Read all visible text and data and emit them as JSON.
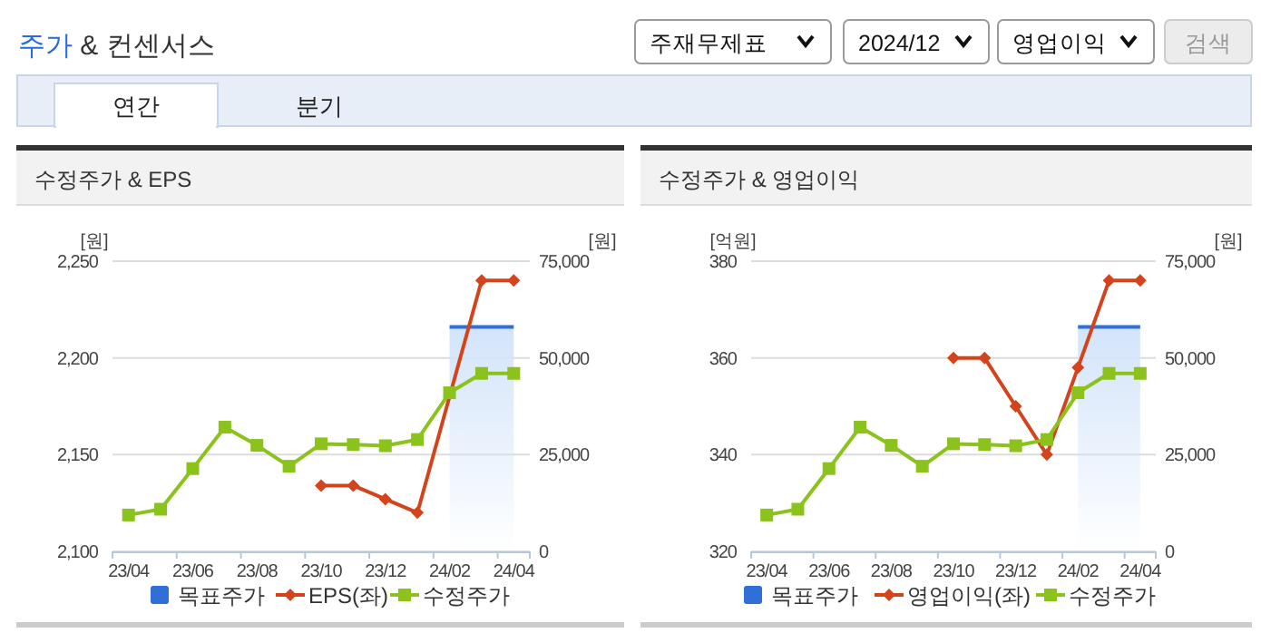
{
  "chart_data": [
    {
      "type": "other",
      "title": "주가 & 컨센서스",
      "annotations": [
        "주재무제표",
        "2024/12",
        "영업이익",
        "검색",
        "연간",
        "분기"
      ]
    },
    {
      "type": "line",
      "title": "수정주가 & EPS",
      "ylabel": "[원]",
      "y2label": "[원]",
      "categories": [
        "23/04",
        null,
        "23/06",
        null,
        "23/08",
        null,
        "23/10",
        null,
        "23/12",
        null,
        "24/02",
        null,
        "24/04"
      ],
      "ylim": [
        2100,
        2250
      ],
      "yticks": [
        {
          "value": 2100,
          "label": "2,100"
        },
        {
          "value": 2150,
          "label": "2,150"
        },
        {
          "value": 2200,
          "label": "2,200"
        },
        {
          "value": 2250,
          "label": "2,250"
        }
      ],
      "y2lim": [
        0,
        75000
      ],
      "y2ticks": [
        0,
        {
          "value": 25000,
          "label": "25,000"
        },
        {
          "value": 50000,
          "label": "50,000"
        },
        {
          "value": 75000,
          "label": "75,000"
        }
      ],
      "grid": "y",
      "legend": "bottom",
      "series": [
        {
          "name": "목표주가",
          "type": "area",
          "axis": "y2",
          "color": "#2f6fd6",
          "values": [
            null,
            null,
            null,
            null,
            null,
            null,
            null,
            null,
            null,
            null,
            58000,
            58000,
            58000
          ]
        },
        {
          "name": "EPS(좌)",
          "type": "line",
          "color": "#d4441c",
          "marker": "diamond",
          "values": [
            null,
            null,
            null,
            null,
            null,
            null,
            2134,
            2134,
            2127,
            2120,
            null,
            2240,
            2240
          ]
        },
        {
          "name": "수정주가",
          "type": "line",
          "axis": "y2",
          "color": "#8bc21c",
          "marker": "square",
          "values": [
            9400,
            10900,
            21400,
            32100,
            27400,
            22000,
            27800,
            27600,
            27300,
            28900,
            41000,
            46000,
            46000
          ]
        }
      ]
    },
    {
      "type": "line",
      "title": "수정주가 & 영업이익",
      "ylabel": "[억원]",
      "y2label": "[원]",
      "categories": [
        "23/04",
        null,
        "23/06",
        null,
        "23/08",
        null,
        "23/10",
        null,
        "23/12",
        null,
        "24/02",
        null,
        "24/04"
      ],
      "ylim": [
        320,
        380
      ],
      "yticks": [
        320,
        340,
        360,
        380
      ],
      "y2lim": [
        0,
        75000
      ],
      "y2ticks": [
        0,
        {
          "value": 25000,
          "label": "25,000"
        },
        {
          "value": 50000,
          "label": "50,000"
        },
        {
          "value": 75000,
          "label": "75,000"
        }
      ],
      "grid": "y",
      "legend": "bottom",
      "series": [
        {
          "name": "목표주가",
          "type": "area",
          "axis": "y2",
          "color": "#2f6fd6",
          "values": [
            null,
            null,
            null,
            null,
            null,
            null,
            null,
            null,
            null,
            null,
            58000,
            58000,
            58000
          ]
        },
        {
          "name": "영업이익(좌)",
          "type": "line",
          "color": "#d4441c",
          "marker": "diamond",
          "values": [
            null,
            null,
            null,
            null,
            null,
            null,
            360,
            360,
            350,
            340,
            358,
            376,
            376
          ]
        },
        {
          "name": "수정주가",
          "type": "line",
          "axis": "y2",
          "color": "#8bc21c",
          "marker": "square",
          "values": [
            9400,
            10900,
            21400,
            32100,
            27400,
            22000,
            27800,
            27600,
            27300,
            28900,
            41000,
            46000,
            46000
          ]
        }
      ]
    }
  ]
}
